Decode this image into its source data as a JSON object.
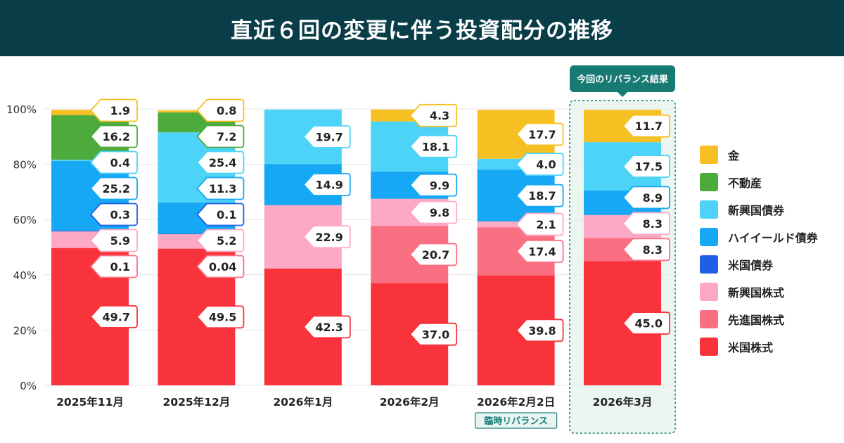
{
  "header": {
    "title": "直近６回の変更に伴う投資配分の推移"
  },
  "chart_data": {
    "type": "bar",
    "stacked": true,
    "title": "直近６回の変更に伴う投資配分の推移",
    "ylim": [
      0,
      100
    ],
    "yticks": [
      "0%",
      "20%",
      "40%",
      "60%",
      "80%",
      "100%"
    ],
    "categories": [
      "2025年11月",
      "2025年12月",
      "2026年1月",
      "2026年2月",
      "2026年2月2日",
      "2026年3月"
    ],
    "category_badges": {
      "4": "臨時リバランス"
    },
    "highlight": {
      "index": 5,
      "label": "今回のリバランス結果"
    },
    "series": [
      {
        "name": "米国株式",
        "color": "#f8333c",
        "values": [
          49.7,
          49.5,
          42.3,
          37.0,
          39.8,
          45.0
        ]
      },
      {
        "name": "先進国株式",
        "color": "#fb6f83",
        "values": [
          0.1,
          0.04,
          0,
          20.7,
          17.4,
          8.3
        ]
      },
      {
        "name": "新興国株式",
        "color": "#fda8c4",
        "values": [
          5.9,
          5.2,
          22.9,
          9.8,
          2.1,
          8.3
        ]
      },
      {
        "name": "米国債券",
        "color": "#1f5ee6",
        "values": [
          0.3,
          0.1,
          0,
          0,
          0,
          0
        ]
      },
      {
        "name": "ハイイールド債券",
        "color": "#16a8f4",
        "values": [
          25.2,
          11.3,
          14.9,
          9.9,
          18.7,
          8.9
        ]
      },
      {
        "name": "新興国債券",
        "color": "#4cd3f7",
        "values": [
          0.4,
          25.4,
          19.7,
          18.1,
          4.0,
          17.5
        ]
      },
      {
        "name": "不動産",
        "color": "#4dab3c",
        "values": [
          16.2,
          7.2,
          0,
          0,
          0,
          0
        ]
      },
      {
        "name": "金",
        "color": "#f6c023",
        "values": [
          1.9,
          0.8,
          0,
          4.3,
          17.7,
          11.7
        ]
      }
    ],
    "data_labels": [
      [
        "49.7",
        "0.1",
        "5.9",
        "0.3",
        "25.2",
        "0.4",
        "16.2",
        "1.9"
      ],
      [
        "49.5",
        "0.04",
        "5.2",
        "0.1",
        "11.3",
        "25.4",
        "7.2",
        "0.8"
      ],
      [
        "42.3",
        "",
        "22.9",
        "",
        "14.9",
        "19.7",
        "",
        ""
      ],
      [
        "37.0",
        "20.7",
        "9.8",
        "",
        "9.9",
        "18.1",
        "",
        "4.3"
      ],
      [
        "39.8",
        "17.4",
        "2.1",
        "",
        "18.7",
        "4.0",
        "",
        "17.7"
      ],
      [
        "45.0",
        "8.3",
        "8.3",
        "",
        "8.9",
        "17.5",
        "",
        "11.7"
      ]
    ]
  },
  "legend": {
    "items": [
      {
        "name": "金",
        "color": "#f6c023"
      },
      {
        "name": "不動産",
        "color": "#4dab3c"
      },
      {
        "name": "新興国債券",
        "color": "#4cd3f7"
      },
      {
        "name": "ハイイールド債券",
        "color": "#16a8f4"
      },
      {
        "name": "米国債券",
        "color": "#1f5ee6"
      },
      {
        "name": "新興国株式",
        "color": "#fda8c4"
      },
      {
        "name": "先進国株式",
        "color": "#fb6f83"
      },
      {
        "name": "米国株式",
        "color": "#f8333c"
      }
    ]
  }
}
